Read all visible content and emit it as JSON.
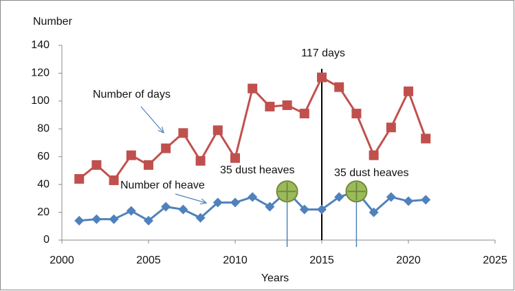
{
  "chart_data": {
    "type": "line",
    "y_label": "Number",
    "x_label": "Years",
    "x": [
      2001,
      2002,
      2003,
      2004,
      2005,
      2006,
      2007,
      2008,
      2009,
      2010,
      2011,
      2012,
      2013,
      2014,
      2015,
      2016,
      2017,
      2018,
      2019,
      2020,
      2021
    ],
    "series": [
      {
        "name": "Number of days",
        "color": "#c0504d",
        "values": [
          44,
          54,
          43,
          61,
          54,
          66,
          77,
          57,
          79,
          59,
          109,
          96,
          97,
          91,
          117,
          110,
          91,
          61,
          81,
          107,
          73
        ]
      },
      {
        "name": "Number of heave",
        "color": "#4f81bd",
        "values": [
          14,
          15,
          15,
          21,
          14,
          24,
          22,
          16,
          27,
          27,
          31,
          24,
          35,
          22,
          22,
          31,
          35,
          20,
          31,
          28,
          29
        ]
      }
    ],
    "annotations": [
      "117 days",
      "35 dust heaves",
      "35 dust heaves"
    ],
    "vline": 2015,
    "highlight_color": "#9bbb59",
    "xlim": [
      2000,
      2025
    ],
    "xticks": [
      2000,
      2005,
      2010,
      2015,
      2020,
      2025
    ],
    "ylim": [
      0,
      140
    ],
    "yticks": [
      0,
      20,
      40,
      60,
      80,
      100,
      120,
      140
    ]
  }
}
